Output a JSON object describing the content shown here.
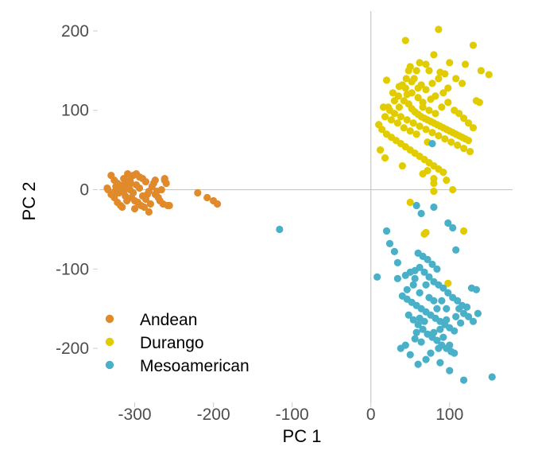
{
  "chart_data": {
    "type": "scatter",
    "title": "",
    "xlabel": "PC 1",
    "ylabel": "PC 2",
    "xlim": [
      -345,
      180
    ],
    "ylim": [
      -268,
      225
    ],
    "x_ticks": [
      -300,
      -200,
      -100,
      0,
      100
    ],
    "y_ticks": [
      -200,
      -100,
      0,
      100,
      200
    ],
    "reference_lines": {
      "x": 0,
      "y": 0
    },
    "grid": false,
    "legend_position": "bottom-left",
    "series": [
      {
        "name": "Andean",
        "color": "#E08A2C",
        "points": [
          [
            -330,
            18
          ],
          [
            -326,
            12
          ],
          [
            -322,
            8
          ],
          [
            -318,
            4
          ],
          [
            -314,
            14
          ],
          [
            -310,
            10
          ],
          [
            -306,
            0
          ],
          [
            -302,
            -4
          ],
          [
            -298,
            6
          ],
          [
            -294,
            2
          ],
          [
            -290,
            -8
          ],
          [
            -286,
            -12
          ],
          [
            -282,
            -2
          ],
          [
            -278,
            4
          ],
          [
            -274,
            -6
          ],
          [
            -270,
            -10
          ],
          [
            -266,
            0
          ],
          [
            -262,
            12
          ],
          [
            -258,
            -20
          ],
          [
            -334,
            0
          ],
          [
            -330,
            -6
          ],
          [
            -326,
            -10
          ],
          [
            -322,
            -16
          ],
          [
            -318,
            -20
          ],
          [
            -314,
            -2
          ],
          [
            -310,
            -14
          ],
          [
            -306,
            12
          ],
          [
            -302,
            18
          ],
          [
            -298,
            20
          ],
          [
            -294,
            16
          ],
          [
            -290,
            14
          ],
          [
            -286,
            10
          ],
          [
            -282,
            -28
          ],
          [
            -280,
            -18
          ],
          [
            -276,
            8
          ],
          [
            -272,
            -2
          ],
          [
            -268,
            -14
          ],
          [
            -264,
            -18
          ],
          [
            -260,
            8
          ],
          [
            -256,
            -20
          ],
          [
            -324,
            4
          ],
          [
            -320,
            -4
          ],
          [
            -316,
            0
          ],
          [
            -312,
            -8
          ],
          [
            -308,
            4
          ],
          [
            -304,
            -10
          ],
          [
            -300,
            -14
          ],
          [
            -296,
            -16
          ],
          [
            -292,
            -20
          ],
          [
            -288,
            -22
          ],
          [
            -284,
            -6
          ],
          [
            -305,
            8
          ],
          [
            -315,
            6
          ],
          [
            -325,
            -2
          ],
          [
            -335,
            2
          ],
          [
            -309,
            20
          ],
          [
            -262,
            14
          ],
          [
            -274,
            12
          ],
          [
            -220,
            -4
          ],
          [
            -208,
            -10
          ],
          [
            -200,
            -14
          ],
          [
            -195,
            -18
          ],
          [
            -316,
            -22
          ],
          [
            -300,
            -24
          ]
        ]
      },
      {
        "name": "Durango",
        "color": "#E0CC00",
        "points": [
          [
            44,
            188
          ],
          [
            86,
            202
          ],
          [
            130,
            182
          ],
          [
            80,
            170
          ],
          [
            62,
            160
          ],
          [
            70,
            158
          ],
          [
            74,
            150
          ],
          [
            100,
            160
          ],
          [
            120,
            158
          ],
          [
            140,
            150
          ],
          [
            150,
            145
          ],
          [
            50,
            155
          ],
          [
            55,
            140
          ],
          [
            45,
            140
          ],
          [
            40,
            132
          ],
          [
            36,
            130
          ],
          [
            20,
            138
          ],
          [
            28,
            122
          ],
          [
            35,
            118
          ],
          [
            42,
            112
          ],
          [
            48,
            108
          ],
          [
            52,
            102
          ],
          [
            56,
            98
          ],
          [
            60,
            95
          ],
          [
            64,
            92
          ],
          [
            68,
            90
          ],
          [
            72,
            88
          ],
          [
            76,
            86
          ],
          [
            80,
            84
          ],
          [
            84,
            82
          ],
          [
            88,
            80
          ],
          [
            92,
            78
          ],
          [
            96,
            76
          ],
          [
            100,
            74
          ],
          [
            104,
            72
          ],
          [
            108,
            70
          ],
          [
            112,
            68
          ],
          [
            116,
            66
          ],
          [
            120,
            64
          ],
          [
            124,
            62
          ],
          [
            16,
            104
          ],
          [
            24,
            100
          ],
          [
            30,
            96
          ],
          [
            38,
            92
          ],
          [
            46,
            88
          ],
          [
            54,
            84
          ],
          [
            62,
            80
          ],
          [
            70,
            76
          ],
          [
            78,
            72
          ],
          [
            86,
            68
          ],
          [
            94,
            64
          ],
          [
            102,
            60
          ],
          [
            110,
            56
          ],
          [
            118,
            52
          ],
          [
            126,
            48
          ],
          [
            134,
            112
          ],
          [
            138,
            110
          ],
          [
            10,
            82
          ],
          [
            14,
            76
          ],
          [
            20,
            70
          ],
          [
            26,
            66
          ],
          [
            32,
            62
          ],
          [
            38,
            58
          ],
          [
            44,
            54
          ],
          [
            50,
            50
          ],
          [
            56,
            46
          ],
          [
            62,
            42
          ],
          [
            68,
            38
          ],
          [
            74,
            34
          ],
          [
            80,
            30
          ],
          [
            86,
            26
          ],
          [
            92,
            22
          ],
          [
            12,
            50
          ],
          [
            18,
            40
          ],
          [
            40,
            30
          ],
          [
            66,
            20
          ],
          [
            72,
            24
          ],
          [
            80,
            14
          ],
          [
            96,
            12
          ],
          [
            104,
            0
          ],
          [
            48,
            150
          ],
          [
            58,
            150
          ],
          [
            88,
            148
          ],
          [
            108,
            140
          ],
          [
            116,
            134
          ],
          [
            98,
            128
          ],
          [
            92,
            122
          ],
          [
            82,
            118
          ],
          [
            76,
            114
          ],
          [
            66,
            110
          ],
          [
            60,
            116
          ],
          [
            52,
            122
          ],
          [
            44,
            128
          ],
          [
            36,
            104
          ],
          [
            30,
            112
          ],
          [
            22,
            104
          ],
          [
            90,
            104
          ],
          [
            98,
            110
          ],
          [
            106,
            100
          ],
          [
            112,
            96
          ],
          [
            118,
            90
          ],
          [
            124,
            84
          ],
          [
            130,
            78
          ],
          [
            82,
            96
          ],
          [
            74,
            100
          ],
          [
            66,
            104
          ],
          [
            58,
            70
          ],
          [
            50,
            74
          ],
          [
            42,
            78
          ],
          [
            34,
            84
          ],
          [
            26,
            88
          ],
          [
            18,
            92
          ],
          [
            64,
            132
          ],
          [
            70,
            126
          ],
          [
            78,
            134
          ],
          [
            86,
            140
          ],
          [
            94,
            146
          ],
          [
            60,
            128
          ],
          [
            52,
            136
          ],
          [
            46,
            120
          ],
          [
            80,
            -2
          ],
          [
            50,
            -16
          ],
          [
            70,
            -54
          ],
          [
            68,
            -56
          ],
          [
            118,
            -52
          ],
          [
            80,
            8
          ],
          [
            98,
            -118
          ],
          [
            72,
            60
          ]
        ]
      },
      {
        "name": "Mesoamerican",
        "color": "#4AB0C8",
        "points": [
          [
            -116,
            -50
          ],
          [
            78,
            58
          ],
          [
            58,
            -20
          ],
          [
            64,
            -30
          ],
          [
            80,
            -22
          ],
          [
            98,
            -42
          ],
          [
            104,
            -48
          ],
          [
            20,
            -52
          ],
          [
            24,
            -68
          ],
          [
            30,
            -78
          ],
          [
            34,
            -92
          ],
          [
            60,
            -80
          ],
          [
            66,
            -84
          ],
          [
            72,
            -88
          ],
          [
            78,
            -94
          ],
          [
            84,
            -100
          ],
          [
            108,
            -76
          ],
          [
            8,
            -110
          ],
          [
            34,
            -112
          ],
          [
            44,
            -108
          ],
          [
            50,
            -104
          ],
          [
            56,
            -102
          ],
          [
            62,
            -98
          ],
          [
            68,
            -104
          ],
          [
            74,
            -110
          ],
          [
            80,
            -116
          ],
          [
            86,
            -120
          ],
          [
            92,
            -124
          ],
          [
            98,
            -130
          ],
          [
            104,
            -136
          ],
          [
            110,
            -140
          ],
          [
            116,
            -146
          ],
          [
            122,
            -148
          ],
          [
            128,
            -124
          ],
          [
            134,
            -126
          ],
          [
            40,
            -134
          ],
          [
            46,
            -138
          ],
          [
            52,
            -142
          ],
          [
            58,
            -146
          ],
          [
            64,
            -150
          ],
          [
            70,
            -154
          ],
          [
            76,
            -158
          ],
          [
            82,
            -162
          ],
          [
            88,
            -166
          ],
          [
            94,
            -170
          ],
          [
            100,
            -174
          ],
          [
            106,
            -178
          ],
          [
            112,
            -150
          ],
          [
            118,
            -156
          ],
          [
            124,
            -160
          ],
          [
            130,
            -166
          ],
          [
            136,
            -156
          ],
          [
            48,
            -158
          ],
          [
            54,
            -164
          ],
          [
            60,
            -170
          ],
          [
            66,
            -176
          ],
          [
            72,
            -182
          ],
          [
            78,
            -186
          ],
          [
            84,
            -190
          ],
          [
            90,
            -196
          ],
          [
            96,
            -200
          ],
          [
            102,
            -204
          ],
          [
            56,
            -188
          ],
          [
            64,
            -192
          ],
          [
            44,
            -196
          ],
          [
            38,
            -200
          ],
          [
            50,
            -208
          ],
          [
            70,
            -214
          ],
          [
            86,
            -200
          ],
          [
            100,
            -196
          ],
          [
            106,
            -206
          ],
          [
            60,
            -220
          ],
          [
            88,
            -218
          ],
          [
            100,
            -228
          ],
          [
            118,
            -240
          ],
          [
            154,
            -236
          ],
          [
            76,
            -206
          ],
          [
            92,
            -186
          ],
          [
            84,
            -150
          ],
          [
            74,
            -136
          ],
          [
            62,
            -130
          ],
          [
            54,
            -120
          ],
          [
            46,
            -126
          ],
          [
            70,
            -120
          ],
          [
            56,
            -112
          ],
          [
            90,
            -140
          ],
          [
            96,
            -150
          ],
          [
            108,
            -160
          ],
          [
            114,
            -168
          ],
          [
            88,
            -176
          ],
          [
            80,
            -180
          ],
          [
            68,
            -166
          ],
          [
            58,
            -180
          ],
          [
            62,
            -162
          ],
          [
            80,
            -140
          ],
          [
            96,
            -164
          ]
        ]
      }
    ]
  }
}
